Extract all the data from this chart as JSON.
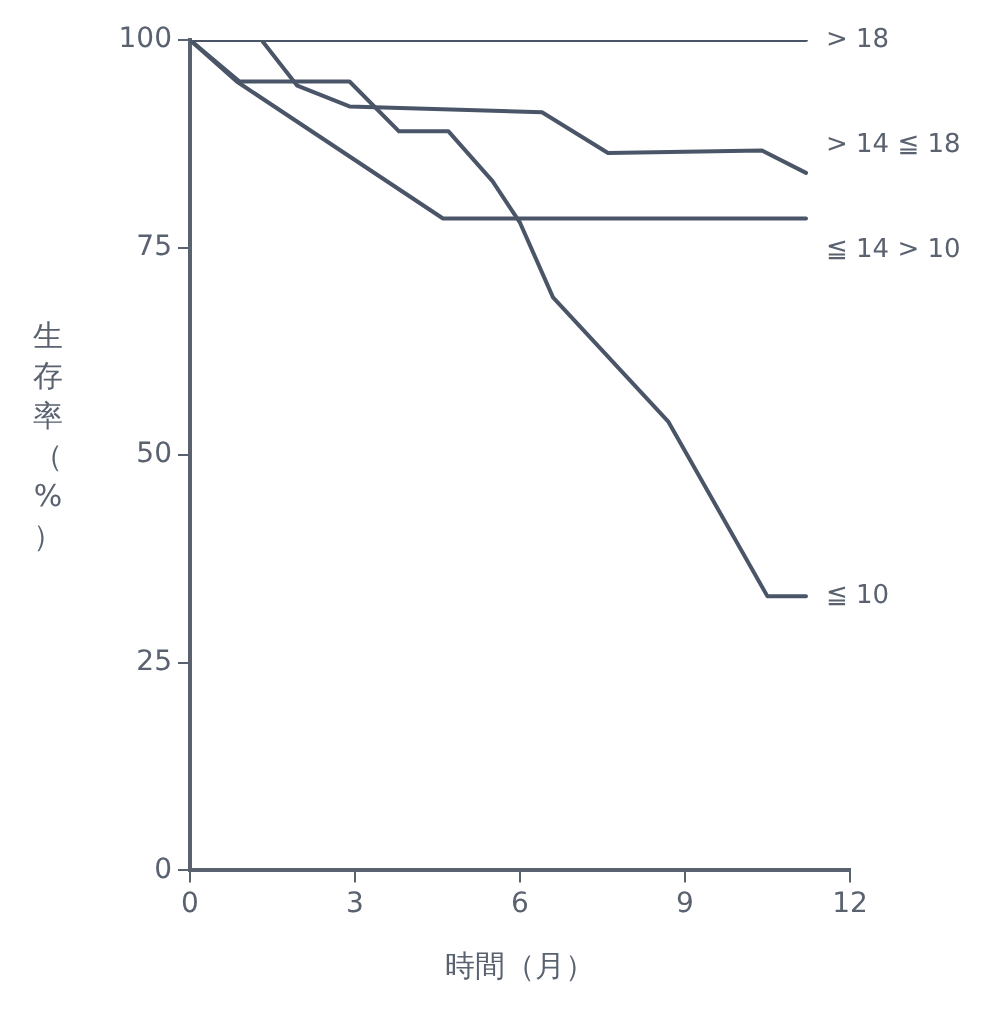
{
  "chart_data": {
    "type": "line",
    "xlabel": "時間（月）",
    "ylabel": "生存率（%）",
    "xlim": [
      0,
      12
    ],
    "xticks": [
      0,
      3,
      6,
      9,
      12
    ],
    "ylim": [
      0,
      100
    ],
    "yticks": [
      0,
      25,
      50,
      75,
      100
    ],
    "grid": false,
    "legend": false,
    "marker": "none",
    "line_style": "solid",
    "series": [
      {
        "name": "> 18",
        "color": "#4a5568",
        "x": [
          0,
          11.2
        ],
        "values": [
          100,
          100
        ]
      },
      {
        "name": "> 14 ≦ 18",
        "color": "#4a5568",
        "x": [
          0,
          1.3,
          1.95,
          2.9,
          6.4,
          7.6,
          10.4,
          11.2
        ],
        "values": [
          100,
          100,
          94.5,
          92,
          91.3,
          86.4,
          86.7,
          84
        ]
      },
      {
        "name": "≦ 14 > 10",
        "color": "#4a5568",
        "x": [
          0,
          0.85,
          4.6,
          11.2
        ],
        "values": [
          100,
          95,
          78.5,
          78.5
        ]
      },
      {
        "name": "≦ 10",
        "color": "#4a5568",
        "x": [
          0,
          0.9,
          2.9,
          3.8,
          4.7,
          5.5,
          6.0,
          6.6,
          8.7,
          10.5,
          11.2
        ],
        "values": [
          100,
          95,
          95,
          89,
          89,
          83,
          78,
          69,
          54,
          33,
          33
        ]
      }
    ]
  }
}
